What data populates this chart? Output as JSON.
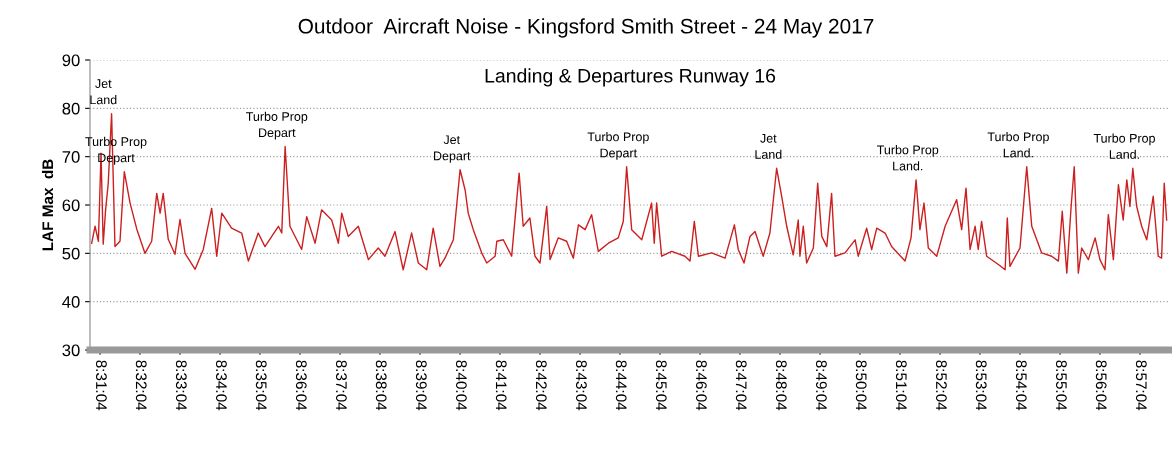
{
  "chart_data": {
    "type": "line",
    "title": "Outdoor  Aircraft Noise - Kingsford Smith Street - 24 May 2017",
    "subtitle": "Landing & Departures Runway 16",
    "ylabel": "LAF Max  dB",
    "xlim": [
      8.5136,
      8.9636
    ],
    "ylim": [
      30,
      90
    ],
    "yticks": [
      30,
      40,
      50,
      60,
      70,
      80,
      90
    ],
    "xticks": [
      {
        "value": 8.5178,
        "label": "8:31:04"
      },
      {
        "value": 8.5344,
        "label": "8:32:04"
      },
      {
        "value": 8.5511,
        "label": "8:33:04"
      },
      {
        "value": 8.5678,
        "label": "8:34:04"
      },
      {
        "value": 8.5844,
        "label": "8:35:04"
      },
      {
        "value": 8.6011,
        "label": "8:36:04"
      },
      {
        "value": 8.6178,
        "label": "8:37:04"
      },
      {
        "value": 8.6344,
        "label": "8:38:04"
      },
      {
        "value": 8.6511,
        "label": "8:39:04"
      },
      {
        "value": 8.6678,
        "label": "8:40:04"
      },
      {
        "value": 8.6844,
        "label": "8:41:04"
      },
      {
        "value": 8.7011,
        "label": "8:42:04"
      },
      {
        "value": 8.7178,
        "label": "8:43:04"
      },
      {
        "value": 8.7344,
        "label": "8:44:04"
      },
      {
        "value": 8.7511,
        "label": "8:45:04"
      },
      {
        "value": 8.7678,
        "label": "8:46:04"
      },
      {
        "value": 8.7844,
        "label": "8:47:04"
      },
      {
        "value": 8.8011,
        "label": "8:48:04"
      },
      {
        "value": 8.8178,
        "label": "8:49:04"
      },
      {
        "value": 8.8344,
        "label": "8:50:04"
      },
      {
        "value": 8.8511,
        "label": "8:51:04"
      },
      {
        "value": 8.8678,
        "label": "8:52:04"
      },
      {
        "value": 8.8844,
        "label": "8:53:04"
      },
      {
        "value": 8.9011,
        "label": "8:54:04"
      },
      {
        "value": 8.9178,
        "label": "8:55:04"
      },
      {
        "value": 8.9344,
        "label": "8:56:04"
      },
      {
        "value": 8.9511,
        "label": "8:57:04"
      }
    ],
    "grid": "y",
    "legend": false,
    "marker": "none",
    "line_style": "solid",
    "x": [
      8.5143,
      8.5157,
      8.5171,
      8.5182,
      8.5191,
      8.5201,
      8.5212,
      8.5226,
      8.524,
      8.5261,
      8.5279,
      8.5303,
      8.5331,
      8.5365,
      8.5393,
      8.5414,
      8.5428,
      8.5441,
      8.5462,
      8.549,
      8.5511,
      8.5532,
      8.5574,
      8.5608,
      8.5643,
      8.5664,
      8.5685,
      8.5726,
      8.5768,
      8.5796,
      8.5837,
      8.5865,
      8.5921,
      8.5935,
      8.5949,
      8.5969,
      8.6018,
      8.6039,
      8.6074,
      8.6101,
      8.6143,
      8.6171,
      8.6185,
      8.6212,
      8.6254,
      8.6296,
      8.6337,
      8.6365,
      8.6407,
      8.6441,
      8.6476,
      8.6504,
      8.6539,
      8.6566,
      8.6594,
      8.6615,
      8.665,
      8.6678,
      8.6699,
      8.6712,
      8.6733,
      8.6768,
      8.6789,
      8.6824,
      8.6831,
      8.6858,
      8.6893,
      8.6924,
      8.6941,
      8.6969,
      8.699,
      8.7011,
      8.7039,
      8.7053,
      8.7087,
      8.7122,
      8.715,
      8.7171,
      8.7199,
      8.7226,
      8.7254,
      8.7296,
      8.7337,
      8.7358,
      8.7372,
      8.7393,
      8.7435,
      8.7476,
      8.7487,
      8.7497,
      8.7518,
      8.756,
      8.7615,
      8.7636,
      8.7654,
      8.7671,
      8.7726,
      8.7782,
      8.7821,
      8.7837,
      8.7861,
      8.7886,
      8.7907,
      8.7941,
      8.7969,
      8.7997,
      8.8018,
      8.8039,
      8.8066,
      8.8087,
      8.8094,
      8.8108,
      8.8122,
      8.815,
      8.8168,
      8.8185,
      8.8206,
      8.8226,
      8.824,
      8.8282,
      8.8324,
      8.8337,
      8.8372,
      8.8393,
      8.8414,
      8.8449,
      8.8476,
      8.8532,
      8.8557,
      8.8578,
      8.8594,
      8.8611,
      8.8629,
      8.8664,
      8.8699,
      8.8747,
      8.8768,
      8.8786,
      8.8803,
      8.8824,
      8.8837,
      8.8851,
      8.8872,
      8.8921,
      8.8949,
      8.8958,
      8.8969,
      8.9011,
      8.9039,
      8.906,
      8.9101,
      8.9143,
      8.9171,
      8.9187,
      8.9206,
      8.9224,
      8.9237,
      8.9254,
      8.9268,
      8.9296,
      8.9324,
      8.9344,
      8.9365,
      8.9379,
      8.94,
      8.9421,
      8.9441,
      8.9456,
      8.9469,
      8.9481,
      8.9497,
      8.9518,
      8.9539,
      8.9566,
      8.9587,
      8.9601,
      8.9612,
      8.9622
    ],
    "series": [
      {
        "color": "#cc1f1f",
        "values": [
          52.1,
          55.6,
          52.5,
          70.7,
          51.9,
          59,
          64.5,
          78.9,
          51.4,
          52.5,
          66.9,
          60.4,
          55,
          50,
          52.5,
          62.4,
          58.3,
          62.4,
          52.9,
          49.8,
          57,
          50,
          46.7,
          50.8,
          59.3,
          49.4,
          58.3,
          55.2,
          54.2,
          48.4,
          54.2,
          51.4,
          55.6,
          54.2,
          72.1,
          55.6,
          50.8,
          57.6,
          52.1,
          59,
          56.9,
          52.1,
          58.3,
          53.5,
          55.6,
          48.7,
          51.1,
          49.4,
          54.5,
          46.6,
          54.2,
          48,
          46.6,
          55.2,
          47.3,
          49,
          52.8,
          67.3,
          63.1,
          58.3,
          54.9,
          50.1,
          48,
          49.4,
          52.5,
          52.8,
          49.4,
          66.6,
          55.6,
          57.3,
          49.4,
          48,
          59.7,
          48.7,
          53.2,
          52.5,
          49,
          55.9,
          54.9,
          58,
          50.4,
          52.1,
          53.2,
          56.6,
          67.9,
          54.9,
          52.8,
          60.4,
          52.1,
          60.4,
          49.4,
          50.4,
          49.4,
          48.4,
          56.6,
          49.4,
          50.1,
          49,
          55.9,
          50.8,
          48,
          53.5,
          54.5,
          49.4,
          54.2,
          67.6,
          61.8,
          55.6,
          49.7,
          56.9,
          49.4,
          55.6,
          48,
          51.1,
          64.5,
          53.5,
          51.4,
          62.4,
          49.4,
          50.1,
          52.8,
          49.4,
          55.2,
          50.8,
          55.2,
          54.2,
          51.4,
          48.4,
          53.2,
          65.2,
          54.9,
          60.4,
          51.1,
          49.4,
          55.6,
          61.1,
          54.9,
          63.5,
          50.8,
          55.6,
          50.8,
          56.6,
          49.4,
          47.7,
          46.6,
          57.3,
          47.3,
          51.1,
          67.9,
          55.6,
          50.1,
          49.4,
          48.4,
          58.7,
          45.9,
          59.7,
          67.9,
          45.9,
          51.1,
          48.7,
          53.2,
          48.7,
          46.6,
          58,
          48.7,
          64.2,
          56.9,
          65.2,
          59.7,
          67.6,
          59.7,
          55.6,
          52.8,
          61.8,
          49.4,
          49,
          64.5,
          56.9
        ]
      }
    ],
    "annotations": [
      {
        "text": "Jet\nLand",
        "x": 8.5226,
        "y": 78.9
      },
      {
        "text": "Turbo Prop\nDepart",
        "x": 8.5279,
        "y": 66.9
      },
      {
        "text": "Turbo Prop\nDepart",
        "x": 8.5949,
        "y": 72.1
      },
      {
        "text": "Jet\nDepart",
        "x": 8.6678,
        "y": 67.3
      },
      {
        "text": "Turbo Prop\nDepart",
        "x": 8.7372,
        "y": 67.9
      },
      {
        "text": "Jet\nLand",
        "x": 8.7997,
        "y": 67.6
      },
      {
        "text": "Turbo Prop\nLand.",
        "x": 8.8578,
        "y": 65.2
      },
      {
        "text": "Turbo Prop\nLand.",
        "x": 8.9039,
        "y": 67.9
      },
      {
        "text": "Turbo Prop\nLand.",
        "x": 8.9481,
        "y": 67.6
      }
    ]
  }
}
